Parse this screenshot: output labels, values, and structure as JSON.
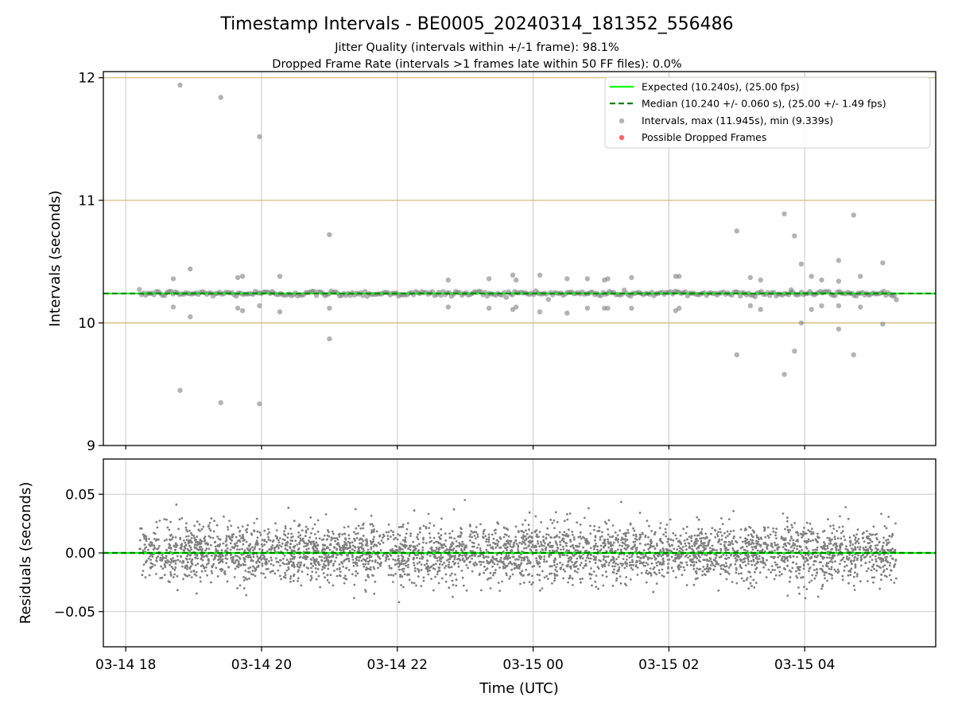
{
  "chart_data": [
    {
      "type": "scatter",
      "title": "Timestamp Intervals - BE0005_20240314_181352_556486",
      "subtitle_lines": [
        "Jitter Quality (intervals within +/-1 frame): 98.1%",
        "Dropped Frame Rate (intervals >1 frames late within 50 FF files): 0.0%"
      ],
      "ylabel": "Intervals (seconds)",
      "ylim": [
        9,
        12.05
      ],
      "y_ticks": [
        "9",
        "10",
        "11",
        "12"
      ],
      "x_tick_labels": [
        "03-14 18",
        "03-14 20",
        "03-14 22",
        "03-15 00",
        "03-15 02",
        "03-15 04"
      ],
      "x_ticks_hours": [
        0,
        2,
        4,
        6,
        8,
        10
      ],
      "x_range_hours": [
        -0.33,
        11.93
      ],
      "data_x_range_hours": [
        0.2,
        11.35
      ],
      "frame_lines_y": [
        10,
        11,
        12
      ],
      "expected": 10.24,
      "median": 10.24,
      "band_half_width": 0.02,
      "legend": {
        "placement": "top-right",
        "entries": [
          "Expected (10.240s), (25.00 fps)",
          "Median (10.240 +/- 0.060 s), (25.00 +/- 1.49 fps)",
          "Intervals, max (11.945s), min (9.339s)",
          "Possible Dropped Frames"
        ]
      },
      "outliers": [
        [
          0.8,
          11.94
        ],
        [
          1.4,
          11.84
        ],
        [
          1.97,
          11.52
        ],
        [
          0.8,
          9.45
        ],
        [
          1.4,
          9.35
        ],
        [
          1.97,
          9.34
        ],
        [
          3.0,
          10.72
        ],
        [
          3.0,
          9.87
        ],
        [
          9.0,
          10.75
        ],
        [
          9.0,
          9.74
        ],
        [
          9.7,
          10.89
        ],
        [
          9.7,
          9.58
        ],
        [
          9.85,
          10.71
        ],
        [
          9.85,
          9.77
        ],
        [
          10.72,
          10.88
        ],
        [
          10.72,
          9.74
        ],
        [
          0.7,
          10.36
        ],
        [
          0.7,
          10.13
        ],
        [
          0.95,
          10.44
        ],
        [
          0.95,
          10.05
        ],
        [
          1.65,
          10.37
        ],
        [
          1.72,
          10.38
        ],
        [
          1.65,
          10.12
        ],
        [
          1.72,
          10.1
        ],
        [
          1.97,
          10.14
        ],
        [
          2.27,
          10.38
        ],
        [
          2.27,
          10.09
        ],
        [
          3.0,
          10.12
        ],
        [
          4.75,
          10.35
        ],
        [
          4.75,
          10.13
        ],
        [
          5.35,
          10.36
        ],
        [
          5.35,
          10.12
        ],
        [
          5.7,
          10.39
        ],
        [
          5.75,
          10.35
        ],
        [
          5.7,
          10.11
        ],
        [
          5.75,
          10.13
        ],
        [
          6.1,
          10.39
        ],
        [
          6.1,
          10.09
        ],
        [
          6.5,
          10.36
        ],
        [
          6.8,
          10.36
        ],
        [
          6.5,
          10.08
        ],
        [
          6.8,
          10.12
        ],
        [
          7.05,
          10.35
        ],
        [
          7.1,
          10.36
        ],
        [
          7.05,
          10.12
        ],
        [
          7.1,
          10.12
        ],
        [
          7.45,
          10.37
        ],
        [
          7.45,
          10.12
        ],
        [
          8.1,
          10.38
        ],
        [
          8.15,
          10.38
        ],
        [
          8.1,
          10.1
        ],
        [
          8.15,
          10.12
        ],
        [
          9.2,
          10.37
        ],
        [
          9.35,
          10.35
        ],
        [
          9.2,
          10.14
        ],
        [
          9.35,
          10.11
        ],
        [
          9.8,
          10.27
        ],
        [
          9.95,
          10.48
        ],
        [
          9.95,
          10.0
        ],
        [
          10.1,
          10.38
        ],
        [
          10.1,
          10.11
        ],
        [
          10.25,
          10.35
        ],
        [
          10.25,
          10.14
        ],
        [
          10.5,
          10.34
        ],
        [
          10.5,
          10.14
        ],
        [
          10.5,
          10.51
        ],
        [
          10.5,
          9.95
        ],
        [
          10.82,
          10.38
        ],
        [
          10.82,
          10.13
        ],
        [
          11.15,
          10.49
        ],
        [
          11.15,
          9.99
        ]
      ]
    },
    {
      "type": "scatter",
      "xlabel": "Time (UTC)",
      "ylabel": "Residuals (seconds)",
      "ylim": [
        -0.08,
        0.08
      ],
      "y_ticks": [
        "0.05",
        "0.00",
        "−0.05"
      ],
      "y_tick_values": [
        0.05,
        0,
        -0.05
      ],
      "zero_line": 0,
      "residual_spread_sd": 0.012,
      "point_count_estimate": 3900
    }
  ],
  "colors": {
    "expected": "#00ff00",
    "median": "#008000",
    "points": "#808080",
    "dropped": "#ff0000",
    "frame_lines": "#d2b470",
    "grid": "#c8c8c8",
    "frame": "#000000"
  }
}
